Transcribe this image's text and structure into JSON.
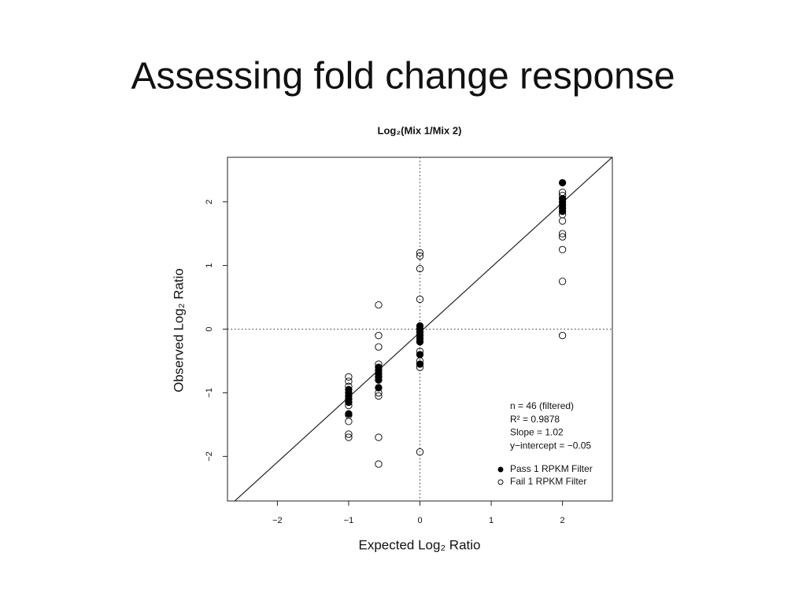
{
  "slide_title": "Assessing fold change response",
  "chart_data": {
    "type": "scatter",
    "title": "Log₂(Mix 1/Mix 2)",
    "x_label": "Expected Log₂ Ratio",
    "y_label": "Observed Log₂ Ratio",
    "xlim": [
      -2.7,
      2.7
    ],
    "ylim": [
      -2.7,
      2.7
    ],
    "xticks": [
      {
        "value": -2,
        "label": "−2"
      },
      {
        "value": -1,
        "label": "−1"
      },
      0,
      1,
      2
    ],
    "yticks": [
      {
        "value": -2,
        "label": "−2"
      },
      {
        "value": -1,
        "label": "−1"
      },
      0,
      1,
      2
    ],
    "reference_lines": {
      "x": [
        0
      ],
      "y": [
        0
      ]
    },
    "fit": {
      "slope": 1.02,
      "intercept": -0.05
    },
    "annotations": [
      "n = 46 (filtered)",
      "R² = 0.9878",
      "Slope = 1.02",
      "y−intercept = −0.05"
    ],
    "legend": "lower right",
    "series": [
      {
        "name": "Pass 1 RPKM Filter",
        "color": "#000000",
        "marker": "filled",
        "x": [
          -1,
          -1,
          -1,
          -1,
          -1,
          -1,
          -0.58,
          -0.58,
          -0.58,
          -0.58,
          -0.58,
          -0.58,
          0,
          0,
          0,
          0,
          0,
          0,
          0,
          0,
          2,
          2,
          2,
          2,
          2,
          2
        ],
        "values": [
          -0.95,
          -1.0,
          -1.05,
          -1.1,
          -1.15,
          -1.33,
          -0.6,
          -0.65,
          -0.7,
          -0.75,
          -0.8,
          -0.92,
          0.05,
          0,
          -0.05,
          -0.1,
          -0.15,
          -0.2,
          -0.4,
          -0.55,
          2.3,
          2.05,
          2.0,
          1.95,
          1.9,
          1.85
        ]
      },
      {
        "name": "Fail 1 RPKM Filter",
        "color": "#000000",
        "marker": "open",
        "x": [
          -1,
          -1,
          -1,
          -1,
          -1,
          -1,
          -1,
          -1,
          -0.58,
          -0.58,
          -0.58,
          -0.58,
          -0.58,
          -0.58,
          -0.58,
          -0.58,
          0,
          0,
          0,
          0,
          0,
          0,
          0,
          0,
          2,
          2,
          2,
          2,
          2,
          2,
          2,
          2,
          2
        ],
        "values": [
          -0.75,
          -0.82,
          -0.9,
          -1.2,
          -1.35,
          -1.45,
          -1.65,
          -1.7,
          0.38,
          -0.1,
          -0.28,
          -0.55,
          -1.0,
          -1.05,
          -1.7,
          -2.12,
          1.2,
          1.15,
          0.95,
          0.47,
          -0.35,
          -0.5,
          -0.6,
          -1.93,
          2.15,
          2.1,
          1.8,
          1.7,
          1.5,
          1.45,
          1.25,
          0.75,
          -0.1
        ]
      }
    ]
  }
}
